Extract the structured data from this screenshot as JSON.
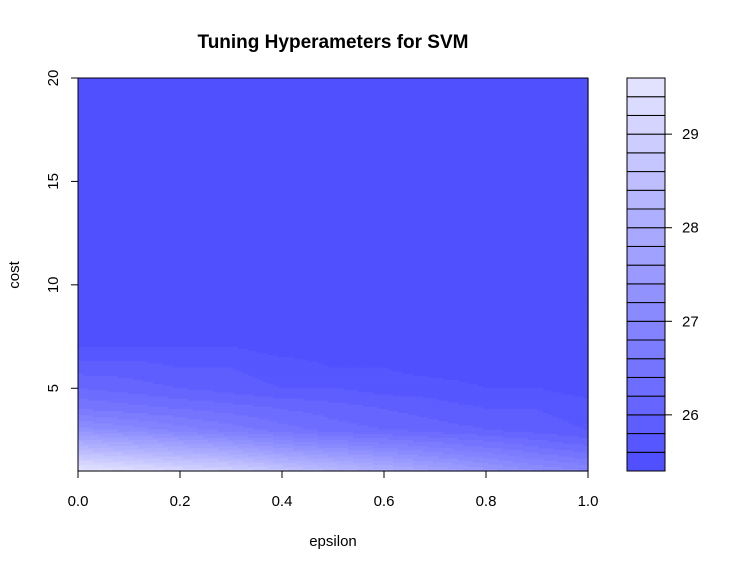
{
  "chart_data": {
    "type": "heatmap",
    "subtype": "filled-contour",
    "title": "Tuning Hyperameters for SVM",
    "xlabel": "epsilon",
    "ylabel": "cost",
    "xlim": [
      0,
      1
    ],
    "ylim": [
      1,
      20
    ],
    "x_ticks": [
      "0.0",
      "0.2",
      "0.4",
      "0.6",
      "0.8",
      "1.0"
    ],
    "y_ticks": [
      "5",
      "10",
      "15",
      "20"
    ],
    "x_tick_values": [
      0,
      0.2,
      0.4,
      0.6,
      0.8,
      1.0
    ],
    "y_tick_values": [
      5,
      10,
      15,
      20
    ],
    "legend": {
      "placement": "right",
      "range": [
        25.4,
        29.6
      ],
      "levels": [
        25.4,
        25.6,
        25.8,
        26.0,
        26.2,
        26.4,
        26.6,
        26.8,
        27.0,
        27.2,
        27.4,
        27.6,
        27.8,
        28.0,
        28.2,
        28.4,
        28.6,
        28.8,
        29.0,
        29.2,
        29.4,
        29.6
      ],
      "ticks": [
        "26",
        "27",
        "28",
        "29"
      ],
      "tick_values": [
        26,
        27,
        28,
        29
      ]
    },
    "colors": {
      "low": "#4c4cff",
      "high": "#e6e6ff"
    },
    "surface": {
      "x": [
        0.0,
        0.1,
        0.2,
        0.3,
        0.4,
        0.5,
        0.6,
        0.7,
        0.8,
        0.9,
        1.0
      ],
      "y": [
        1,
        2,
        3,
        4,
        5,
        6,
        7,
        8,
        20
      ],
      "z": [
        [
          29.6,
          29.4,
          29.2,
          29.0,
          28.7,
          28.4,
          28.1,
          27.8,
          27.5,
          27.2,
          27.0
        ],
        [
          28.4,
          28.2,
          28.0,
          27.8,
          27.5,
          27.3,
          27.1,
          26.9,
          26.7,
          26.5,
          26.3
        ],
        [
          27.3,
          27.1,
          26.9,
          26.7,
          26.5,
          26.3,
          26.2,
          26.1,
          26.0,
          25.9,
          25.8
        ],
        [
          26.6,
          26.5,
          26.4,
          26.3,
          26.2,
          26.1,
          26.0,
          25.9,
          25.8,
          25.8,
          25.7
        ],
        [
          26.2,
          26.1,
          26.0,
          25.9,
          25.8,
          25.8,
          25.7,
          25.7,
          25.6,
          25.6,
          25.5
        ],
        [
          25.9,
          25.9,
          25.8,
          25.8,
          25.7,
          25.6,
          25.6,
          25.5,
          25.5,
          25.5,
          25.5
        ],
        [
          25.6,
          25.6,
          25.6,
          25.6,
          25.5,
          25.5,
          25.5,
          25.4,
          25.4,
          25.4,
          25.4
        ],
        [
          25.4,
          25.4,
          25.4,
          25.4,
          25.4,
          25.4,
          25.4,
          25.4,
          25.4,
          25.4,
          25.4
        ],
        [
          25.4,
          25.4,
          25.4,
          25.4,
          25.4,
          25.4,
          25.4,
          25.4,
          25.4,
          25.4,
          25.4
        ]
      ]
    }
  }
}
